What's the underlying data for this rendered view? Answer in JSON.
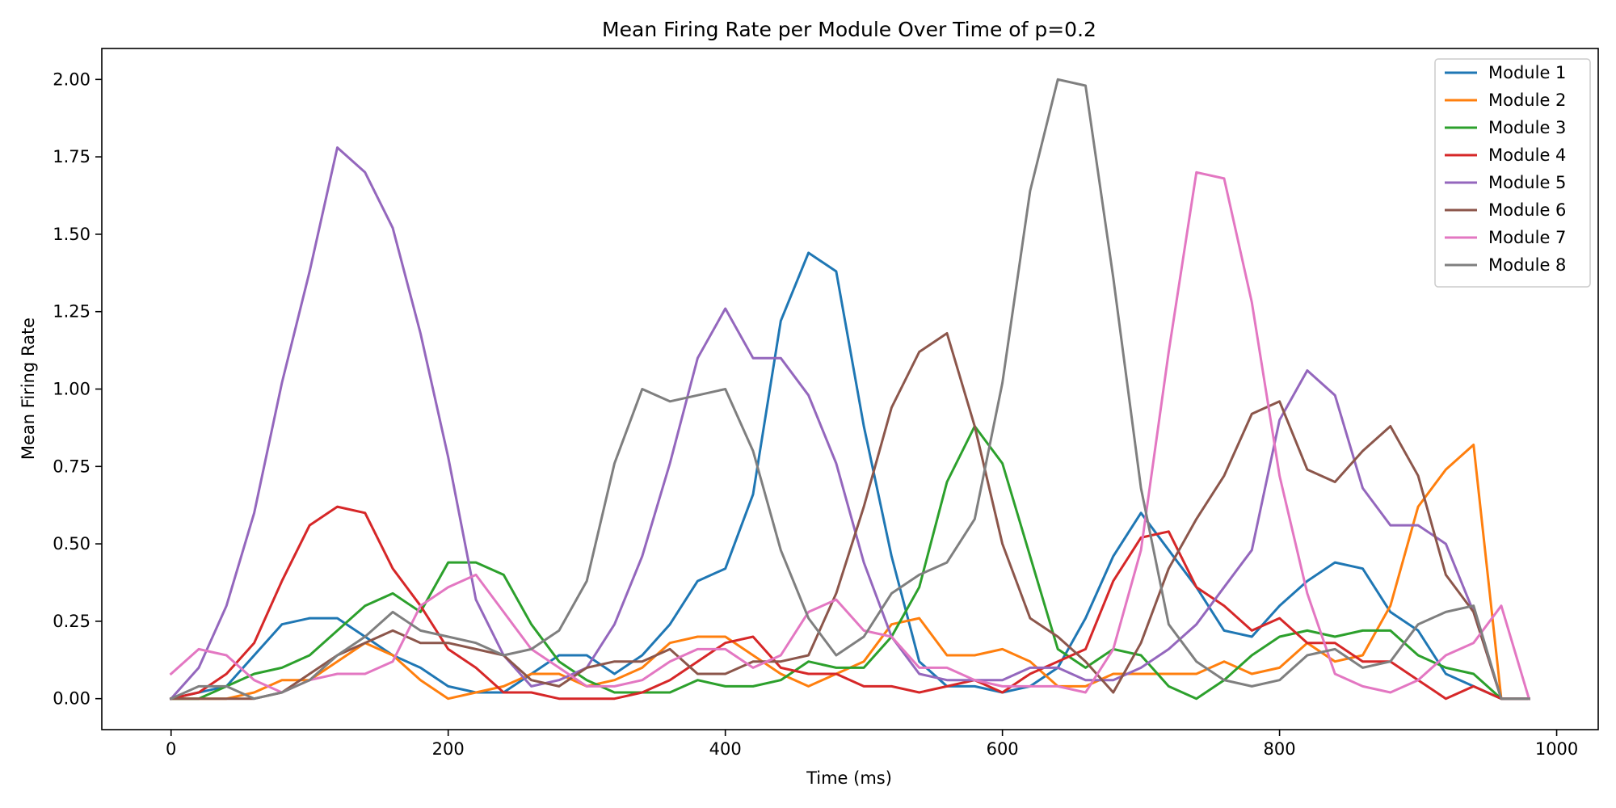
{
  "chart_data": {
    "type": "line",
    "title": "Mean Firing Rate per Module Over Time of p=0.2",
    "xlabel": "Time (ms)",
    "ylabel": "Mean Firing Rate",
    "xlim": [
      -50,
      1030
    ],
    "ylim": [
      -0.1,
      2.1
    ],
    "xticks": [
      0,
      200,
      400,
      600,
      800,
      1000
    ],
    "xtick_labels": [
      "0",
      "200",
      "400",
      "600",
      "800",
      "1000"
    ],
    "yticks": [
      0,
      0.25,
      0.5,
      0.75,
      1.0,
      1.25,
      1.5,
      1.75,
      2.0
    ],
    "ytick_labels": [
      "0.00",
      "0.25",
      "0.50",
      "0.75",
      "1.00",
      "1.25",
      "1.50",
      "1.75",
      "2.00"
    ],
    "grid": false,
    "legend_position": "top-right",
    "x": [
      0,
      20,
      40,
      60,
      80,
      100,
      120,
      140,
      160,
      180,
      200,
      220,
      240,
      260,
      280,
      300,
      320,
      340,
      360,
      380,
      400,
      420,
      440,
      460,
      480,
      500,
      520,
      540,
      560,
      580,
      600,
      620,
      640,
      660,
      680,
      700,
      720,
      740,
      760,
      780,
      800,
      820,
      840,
      860,
      880,
      900,
      920,
      940,
      960,
      980
    ],
    "series": [
      {
        "name": "Module 1",
        "color": "#1f77b4",
        "values": [
          0,
          0.02,
          0.04,
          0.14,
          0.24,
          0.26,
          0.26,
          0.2,
          0.14,
          0.1,
          0.04,
          0.02,
          0.02,
          0.08,
          0.14,
          0.14,
          0.08,
          0.14,
          0.24,
          0.38,
          0.42,
          0.66,
          1.22,
          1.44,
          1.38,
          0.88,
          0.46,
          0.12,
          0.04,
          0.04,
          0.02,
          0.04,
          0.1,
          0.26,
          0.46,
          0.6,
          0.48,
          0.36,
          0.22,
          0.2,
          0.3,
          0.38,
          0.44,
          0.42,
          0.28,
          0.22,
          0.08,
          0.04,
          0,
          0
        ]
      },
      {
        "name": "Module 2",
        "color": "#ff7f0e",
        "values": [
          0,
          0,
          0,
          0.02,
          0.06,
          0.06,
          0.12,
          0.18,
          0.14,
          0.06,
          0,
          0.02,
          0.04,
          0.08,
          0.08,
          0.04,
          0.06,
          0.1,
          0.18,
          0.2,
          0.2,
          0.14,
          0.08,
          0.04,
          0.08,
          0.12,
          0.24,
          0.26,
          0.14,
          0.14,
          0.16,
          0.12,
          0.04,
          0.04,
          0.08,
          0.08,
          0.08,
          0.08,
          0.12,
          0.08,
          0.1,
          0.18,
          0.12,
          0.14,
          0.3,
          0.62,
          0.74,
          0.82,
          0,
          0
        ]
      },
      {
        "name": "Module 3",
        "color": "#2ca02c",
        "values": [
          0,
          0,
          0.04,
          0.08,
          0.1,
          0.14,
          0.22,
          0.3,
          0.34,
          0.28,
          0.44,
          0.44,
          0.4,
          0.24,
          0.12,
          0.06,
          0.02,
          0.02,
          0.02,
          0.06,
          0.04,
          0.04,
          0.06,
          0.12,
          0.1,
          0.1,
          0.2,
          0.36,
          0.7,
          0.88,
          0.76,
          0.46,
          0.16,
          0.1,
          0.16,
          0.14,
          0.04,
          0,
          0.06,
          0.14,
          0.2,
          0.22,
          0.2,
          0.22,
          0.22,
          0.14,
          0.1,
          0.08,
          0,
          0
        ]
      },
      {
        "name": "Module 4",
        "color": "#d62728",
        "values": [
          0,
          0.02,
          0.08,
          0.18,
          0.38,
          0.56,
          0.62,
          0.6,
          0.42,
          0.3,
          0.16,
          0.1,
          0.02,
          0.02,
          0,
          0,
          0,
          0.02,
          0.06,
          0.12,
          0.18,
          0.2,
          0.1,
          0.08,
          0.08,
          0.04,
          0.04,
          0.02,
          0.04,
          0.06,
          0.02,
          0.08,
          0.12,
          0.16,
          0.38,
          0.52,
          0.54,
          0.36,
          0.3,
          0.22,
          0.26,
          0.18,
          0.18,
          0.12,
          0.12,
          0.06,
          0,
          0.04,
          0,
          0
        ]
      },
      {
        "name": "Module 5",
        "color": "#9467bd",
        "values": [
          0,
          0.1,
          0.3,
          0.6,
          1.02,
          1.38,
          1.78,
          1.7,
          1.52,
          1.18,
          0.78,
          0.32,
          0.14,
          0.04,
          0.06,
          0.1,
          0.24,
          0.46,
          0.76,
          1.1,
          1.26,
          1.1,
          1.1,
          0.98,
          0.76,
          0.44,
          0.2,
          0.08,
          0.06,
          0.06,
          0.06,
          0.1,
          0.1,
          0.06,
          0.06,
          0.1,
          0.16,
          0.24,
          0.36,
          0.48,
          0.9,
          1.06,
          0.98,
          0.68,
          0.56,
          0.56,
          0.5,
          0.28,
          0,
          0
        ]
      },
      {
        "name": "Module 6",
        "color": "#8c564b",
        "values": [
          0,
          0,
          0,
          0,
          0.02,
          0.08,
          0.14,
          0.18,
          0.22,
          0.18,
          0.18,
          0.16,
          0.14,
          0.06,
          0.04,
          0.1,
          0.12,
          0.12,
          0.16,
          0.08,
          0.08,
          0.12,
          0.12,
          0.14,
          0.34,
          0.62,
          0.94,
          1.12,
          1.18,
          0.88,
          0.5,
          0.26,
          0.2,
          0.12,
          0.02,
          0.18,
          0.42,
          0.58,
          0.72,
          0.92,
          0.96,
          0.74,
          0.7,
          0.8,
          0.88,
          0.72,
          0.4,
          0.28,
          0,
          0
        ]
      },
      {
        "name": "Module 7",
        "color": "#e377c2",
        "values": [
          0.08,
          0.16,
          0.14,
          0.06,
          0.02,
          0.06,
          0.08,
          0.08,
          0.12,
          0.3,
          0.36,
          0.4,
          0.28,
          0.16,
          0.1,
          0.04,
          0.04,
          0.06,
          0.12,
          0.16,
          0.16,
          0.1,
          0.14,
          0.28,
          0.32,
          0.22,
          0.2,
          0.1,
          0.1,
          0.06,
          0.04,
          0.04,
          0.04,
          0.02,
          0.16,
          0.48,
          1.12,
          1.7,
          1.68,
          1.28,
          0.72,
          0.34,
          0.08,
          0.04,
          0.02,
          0.06,
          0.14,
          0.18,
          0.3,
          0
        ]
      },
      {
        "name": "Module 8",
        "color": "#7f7f7f",
        "values": [
          0,
          0.04,
          0.04,
          0,
          0.02,
          0.06,
          0.14,
          0.2,
          0.28,
          0.22,
          0.2,
          0.18,
          0.14,
          0.16,
          0.22,
          0.38,
          0.76,
          1.0,
          0.96,
          0.98,
          1.0,
          0.8,
          0.48,
          0.26,
          0.14,
          0.2,
          0.34,
          0.4,
          0.44,
          0.58,
          1.02,
          1.64,
          2.0,
          1.98,
          1.36,
          0.68,
          0.24,
          0.12,
          0.06,
          0.04,
          0.06,
          0.14,
          0.16,
          0.1,
          0.12,
          0.24,
          0.28,
          0.3,
          0,
          0
        ]
      }
    ]
  }
}
